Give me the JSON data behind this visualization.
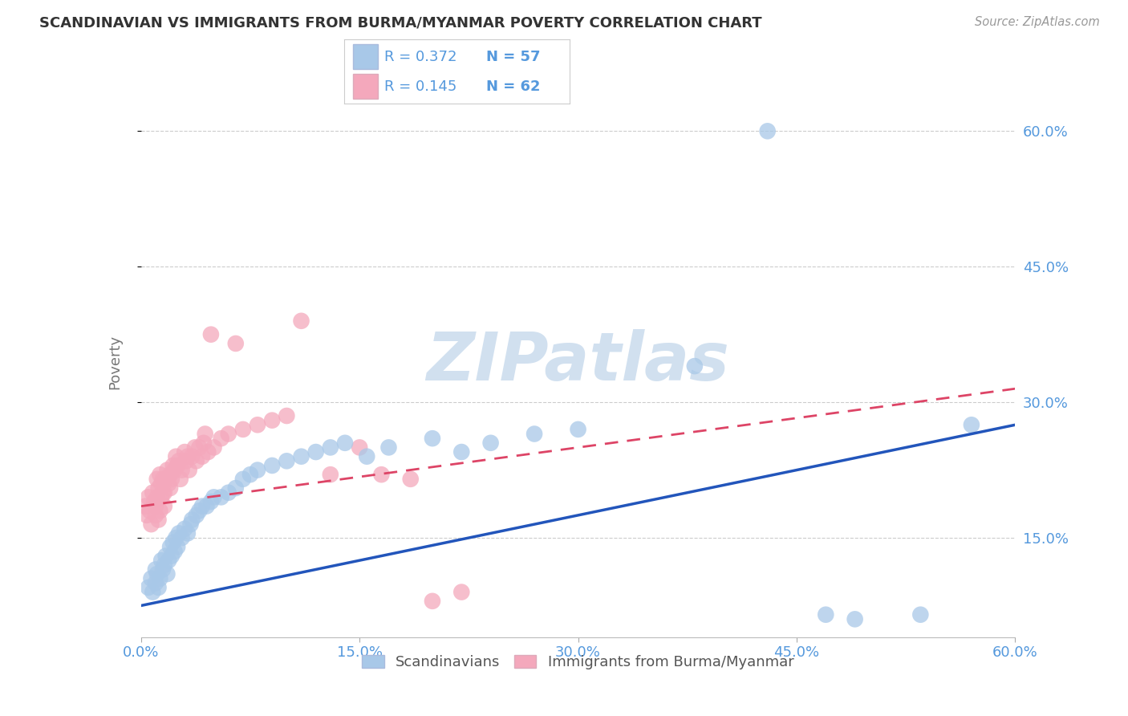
{
  "title": "SCANDINAVIAN VS IMMIGRANTS FROM BURMA/MYANMAR POVERTY CORRELATION CHART",
  "source": "Source: ZipAtlas.com",
  "xlabel_blue": "Scandinavians",
  "xlabel_pink": "Immigrants from Burma/Myanmar",
  "ylabel": "Poverty",
  "x_min": 0.0,
  "x_max": 0.6,
  "y_min": 0.04,
  "y_max": 0.65,
  "yticks": [
    0.15,
    0.3,
    0.45,
    0.6
  ],
  "ytick_labels": [
    "15.0%",
    "30.0%",
    "45.0%",
    "60.0%"
  ],
  "xticks": [
    0.0,
    0.15,
    0.3,
    0.45,
    0.6
  ],
  "xtick_labels": [
    "0.0%",
    "15.0%",
    "30.0%",
    "45.0%",
    "60.0%"
  ],
  "legend_blue_R": "0.372",
  "legend_blue_N": "57",
  "legend_pink_R": "0.145",
  "legend_pink_N": "62",
  "blue_scatter_color": "#A8C8E8",
  "pink_scatter_color": "#F4A8BC",
  "blue_line_color": "#2255BB",
  "pink_line_color": "#DD4466",
  "blue_line_y0": 0.075,
  "blue_line_y1": 0.275,
  "pink_line_y0": 0.185,
  "pink_line_y1": 0.315,
  "watermark_text": "ZIPatlas",
  "title_color": "#333333",
  "source_color": "#999999",
  "axis_tick_color": "#5599DD",
  "ylabel_color": "#777777",
  "grid_color": "#CCCCCC",
  "blue_scatter_x": [
    0.005,
    0.007,
    0.008,
    0.01,
    0.01,
    0.011,
    0.012,
    0.013,
    0.014,
    0.015,
    0.016,
    0.017,
    0.018,
    0.019,
    0.02,
    0.021,
    0.022,
    0.023,
    0.024,
    0.025,
    0.026,
    0.028,
    0.03,
    0.032,
    0.034,
    0.035,
    0.038,
    0.04,
    0.042,
    0.045,
    0.048,
    0.05,
    0.055,
    0.06,
    0.065,
    0.07,
    0.075,
    0.08,
    0.09,
    0.1,
    0.11,
    0.12,
    0.13,
    0.14,
    0.155,
    0.17,
    0.2,
    0.22,
    0.24,
    0.27,
    0.3,
    0.38,
    0.43,
    0.47,
    0.49,
    0.535,
    0.57
  ],
  "blue_scatter_y": [
    0.095,
    0.105,
    0.09,
    0.115,
    0.1,
    0.11,
    0.095,
    0.105,
    0.125,
    0.115,
    0.12,
    0.13,
    0.11,
    0.125,
    0.14,
    0.13,
    0.145,
    0.135,
    0.15,
    0.14,
    0.155,
    0.15,
    0.16,
    0.155,
    0.165,
    0.17,
    0.175,
    0.18,
    0.185,
    0.185,
    0.19,
    0.195,
    0.195,
    0.2,
    0.205,
    0.215,
    0.22,
    0.225,
    0.23,
    0.235,
    0.24,
    0.245,
    0.25,
    0.255,
    0.24,
    0.25,
    0.26,
    0.245,
    0.255,
    0.265,
    0.27,
    0.34,
    0.6,
    0.065,
    0.06,
    0.065,
    0.275
  ],
  "pink_scatter_x": [
    0.003,
    0.004,
    0.005,
    0.006,
    0.007,
    0.008,
    0.009,
    0.01,
    0.01,
    0.011,
    0.011,
    0.012,
    0.012,
    0.013,
    0.013,
    0.014,
    0.014,
    0.015,
    0.015,
    0.016,
    0.016,
    0.017,
    0.018,
    0.019,
    0.02,
    0.02,
    0.021,
    0.022,
    0.023,
    0.024,
    0.025,
    0.026,
    0.027,
    0.028,
    0.03,
    0.031,
    0.032,
    0.033,
    0.035,
    0.037,
    0.038,
    0.04,
    0.042,
    0.043,
    0.044,
    0.046,
    0.048,
    0.05,
    0.055,
    0.06,
    0.065,
    0.07,
    0.08,
    0.09,
    0.1,
    0.11,
    0.13,
    0.15,
    0.165,
    0.185,
    0.2,
    0.22
  ],
  "pink_scatter_y": [
    0.185,
    0.175,
    0.195,
    0.18,
    0.165,
    0.2,
    0.19,
    0.185,
    0.175,
    0.195,
    0.215,
    0.17,
    0.205,
    0.18,
    0.22,
    0.195,
    0.21,
    0.2,
    0.215,
    0.185,
    0.2,
    0.215,
    0.225,
    0.21,
    0.22,
    0.205,
    0.215,
    0.23,
    0.225,
    0.24,
    0.23,
    0.235,
    0.215,
    0.225,
    0.245,
    0.235,
    0.24,
    0.225,
    0.24,
    0.25,
    0.235,
    0.25,
    0.24,
    0.255,
    0.265,
    0.245,
    0.375,
    0.25,
    0.26,
    0.265,
    0.365,
    0.27,
    0.275,
    0.28,
    0.285,
    0.39,
    0.22,
    0.25,
    0.22,
    0.215,
    0.08,
    0.09
  ]
}
